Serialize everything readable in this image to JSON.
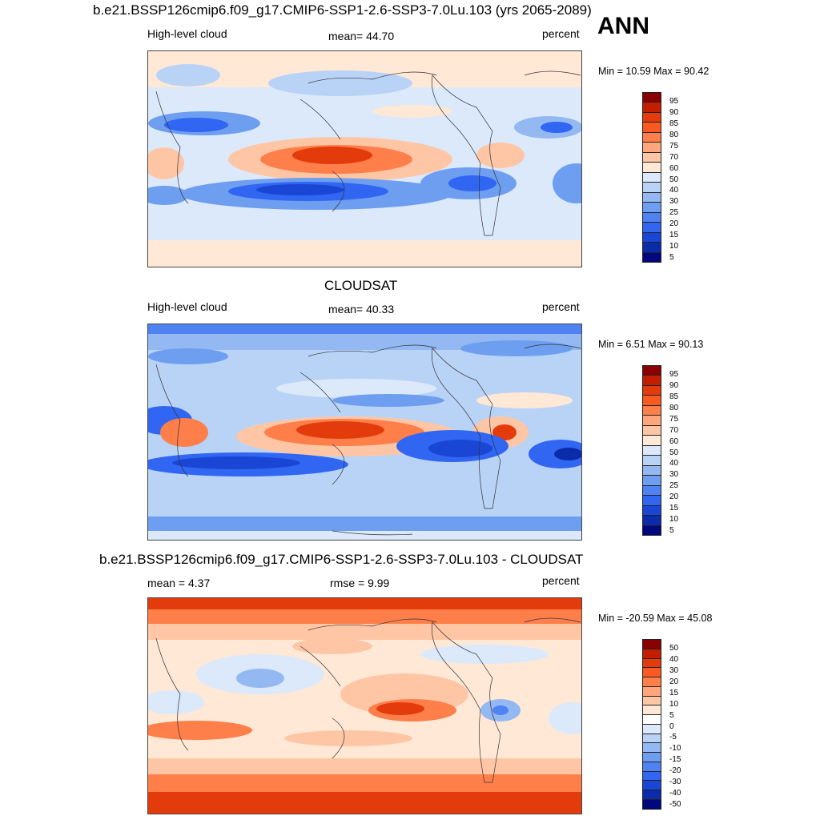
{
  "header": {
    "season": "ANN"
  },
  "panels": [
    {
      "id": "model",
      "title": "b.e21.BSSP126cmip6.f09_g17.CMIP6-SSP1-2.6-SSP3-7.0Lu.103 (yrs 2065-2089)",
      "left_label": "High-level cloud",
      "center_label": "mean=  44.70",
      "right_label": "percent",
      "minmax": "Min =  10.59 Max =  90.42",
      "colorbar": {
        "colors": [
          "#8b0000",
          "#c31e00",
          "#e43b0c",
          "#f85a22",
          "#ff7f4a",
          "#ffa67d",
          "#ffc6a5",
          "#ffe8d6",
          "#dbe9fb",
          "#b9d3f7",
          "#93b8f2",
          "#6e9ef0",
          "#4f83f3",
          "#3066f2",
          "#1a46d6",
          "#0a2cab",
          "#00087b"
        ],
        "ticks": [
          "95",
          "90",
          "85",
          "80",
          "75",
          "70",
          "60",
          "50",
          "40",
          "30",
          "25",
          "20",
          "15",
          "10",
          "5"
        ]
      }
    },
    {
      "id": "obs",
      "title": "CLOUDSAT",
      "left_label": "High-level cloud",
      "center_label": "mean=  40.33",
      "right_label": "percent",
      "minmax": "Min =   6.51 Max =  90.13",
      "colorbar": {
        "colors": [
          "#8b0000",
          "#c31e00",
          "#e43b0c",
          "#f85a22",
          "#ff7f4a",
          "#ffa67d",
          "#ffc6a5",
          "#ffe8d6",
          "#dbe9fb",
          "#b9d3f7",
          "#93b8f2",
          "#6e9ef0",
          "#4f83f3",
          "#3066f2",
          "#1a46d6",
          "#0a2cab",
          "#00087b"
        ],
        "ticks": [
          "95",
          "90",
          "85",
          "80",
          "75",
          "70",
          "60",
          "50",
          "40",
          "30",
          "25",
          "20",
          "15",
          "10",
          "5"
        ]
      }
    },
    {
      "id": "diff",
      "title": "b.e21.BSSP126cmip6.f09_g17.CMIP6-SSP1-2.6-SSP3-7.0Lu.103 - CLOUDSAT",
      "left_label": "mean =   4.37",
      "center_label": "rmse =   9.99",
      "right_label": "percent",
      "minmax": "Min = -20.59 Max =  45.08",
      "colorbar": {
        "colors": [
          "#8b0000",
          "#c31e00",
          "#e43b0c",
          "#f85a22",
          "#ff7f4a",
          "#ffa67d",
          "#ffc6a5",
          "#ffe8d6",
          "#ffffff",
          "#dbe9fb",
          "#b9d3f7",
          "#93b8f2",
          "#6e9ef0",
          "#4f83f3",
          "#3066f2",
          "#1a46d6",
          "#0a2cab",
          "#00087b"
        ],
        "ticks": [
          "50",
          "40",
          "30",
          "20",
          "15",
          "10",
          "5",
          "0",
          "-5",
          "-10",
          "-15",
          "-20",
          "-30",
          "-40",
          "-50"
        ]
      }
    }
  ]
}
